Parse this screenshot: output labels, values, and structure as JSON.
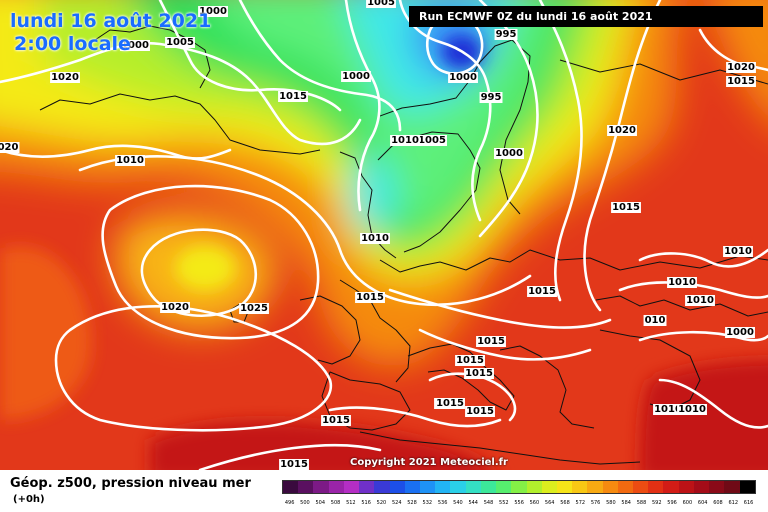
{
  "header": {
    "date_title": "lundi 16 août 2021",
    "time_title": "2:00 locale",
    "run_banner": "Run ECMWF 0Z du lundi 16 août 2021"
  },
  "footer": {
    "copyright": "Copyright 2021 Meteociel.fr",
    "field_title": "Géop. z500, pression niveau mer",
    "lead_time": "(+0h)"
  },
  "legend": {
    "values": [
      "496",
      "500",
      "504",
      "508",
      "512",
      "516",
      "520",
      "524",
      "528",
      "532",
      "536",
      "540",
      "544",
      "548",
      "552",
      "556",
      "560",
      "564",
      "568",
      "572",
      "576",
      "580",
      "584",
      "588",
      "592",
      "596",
      "600",
      "604",
      "608",
      "612",
      "616"
    ],
    "colors": [
      "#3a0a3e",
      "#5a1060",
      "#7c1a86",
      "#9a24a8",
      "#b42ec4",
      "#7030c8",
      "#3a3ad6",
      "#1c4fe8",
      "#1a70f2",
      "#1e92f6",
      "#22b4f4",
      "#2ad0e8",
      "#34e0c4",
      "#3ce89a",
      "#56ee6e",
      "#84f046",
      "#b2f02c",
      "#dcee1e",
      "#f6e418",
      "#f8c814",
      "#f8aa12",
      "#f68a10",
      "#f26a10",
      "#ec4c12",
      "#e23014",
      "#d21c16",
      "#bc1216",
      "#a40c18",
      "#8a0a18",
      "#700a16",
      "#000000"
    ]
  },
  "map": {
    "colors": {
      "very_low": "#1d2fd6",
      "low": "#3a8cf5",
      "cyan": "#3fe8e8",
      "green_light": "#5df07a",
      "green": "#2ee05a",
      "yellow_green": "#b6ee2c",
      "yellow": "#f4ea18",
      "orange_light": "#f8b414",
      "orange": "#f58a10",
      "red_orange": "#ee5a12",
      "red": "#e2381a",
      "dark_red": "#c41818"
    },
    "pressure_labels": [
      {
        "text": "1000"
      },
      {
        "text": "1005"
      },
      {
        "text": "1005"
      },
      {
        "text": "1000"
      },
      {
        "text": "1020"
      },
      {
        "text": "1015"
      },
      {
        "text": "1000"
      },
      {
        "text": "1005"
      },
      {
        "text": "1000"
      },
      {
        "text": "995"
      },
      {
        "text": "995"
      },
      {
        "text": "1020"
      },
      {
        "text": "1010"
      },
      {
        "text": "1010"
      },
      {
        "text": "1005"
      },
      {
        "text": "1000"
      },
      {
        "text": "1015"
      },
      {
        "text": "1010"
      },
      {
        "text": "1020"
      },
      {
        "text": "1025"
      },
      {
        "text": "1015"
      },
      {
        "text": "1015"
      },
      {
        "text": "1015"
      },
      {
        "text": "1015"
      },
      {
        "text": "1015"
      },
      {
        "text": "1015"
      },
      {
        "text": "1015"
      },
      {
        "text": "1020"
      },
      {
        "text": "1015"
      },
      {
        "text": "1010"
      },
      {
        "text": "1010"
      },
      {
        "text": "1010"
      },
      {
        "text": "010"
      },
      {
        "text": "1000"
      },
      {
        "text": "1010"
      },
      {
        "text": "1010"
      },
      {
        "text": "1015"
      },
      {
        "text": "1015"
      },
      {
        "text": "1015"
      },
      {
        "text": "020"
      }
    ]
  }
}
